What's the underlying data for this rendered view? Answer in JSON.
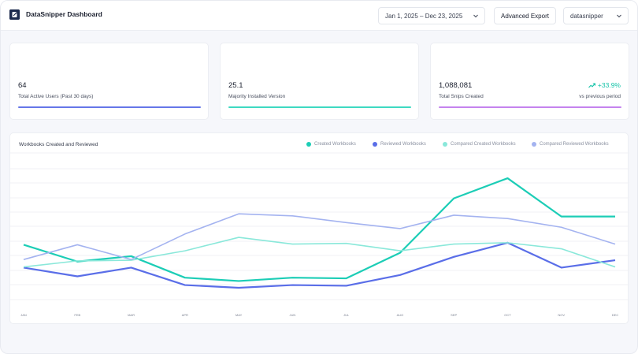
{
  "header": {
    "title": "DataSnipper Dashboard",
    "date_range": "Jan 1, 2025 – Dec 23, 2025",
    "export_label": "Advanced Export",
    "user": "datasnipper"
  },
  "kpis": [
    {
      "value": "64",
      "label": "Total Active Users (Past 30 days)",
      "color": "#6677e8"
    },
    {
      "value": "25.1",
      "label": "Majority Installed Version",
      "color": "#3ed9c2"
    },
    {
      "value": "1,088,081",
      "label": "Total Snips Created",
      "color": "#c583ee",
      "trend": "+33.9%",
      "trend_sub": "vs previous period"
    }
  ],
  "chart_data": {
    "type": "line",
    "title": "Workbooks Created and Reviewed",
    "categories": [
      "JAN",
      "FEB",
      "MAR",
      "APR",
      "MAY",
      "JUN",
      "JUL",
      "AUG",
      "SEP",
      "OCT",
      "NOV",
      "DEC"
    ],
    "grid": true,
    "legend_position": "top-right",
    "series": [
      {
        "name": "Created Workbooks",
        "color": "#1ccdb6",
        "width": 2.2,
        "values": [
          65.5,
          53,
          57,
          41,
          38.5,
          41,
          40.5,
          59.5,
          100,
          115,
          86.5,
          86.5
        ]
      },
      {
        "name": "Reviewed Workbooks",
        "color": "#5a6ee8",
        "width": 2.2,
        "values": [
          48.5,
          42,
          48.5,
          35.5,
          33.5,
          35.5,
          35,
          43,
          56.5,
          67,
          48.5,
          54
        ]
      },
      {
        "name": "Compared Created Workbooks",
        "color": "#8ae8da",
        "width": 1.6,
        "values": [
          49,
          53.5,
          54,
          61,
          71,
          66,
          66.5,
          61,
          66,
          67,
          62.5,
          49
        ]
      },
      {
        "name": "Compared Reviewed Workbooks",
        "color": "#a4b3f0",
        "width": 1.6,
        "values": [
          54.5,
          65.5,
          54.5,
          73.5,
          88.5,
          87,
          82,
          77.5,
          87.5,
          85,
          78.5,
          66
        ]
      }
    ]
  }
}
